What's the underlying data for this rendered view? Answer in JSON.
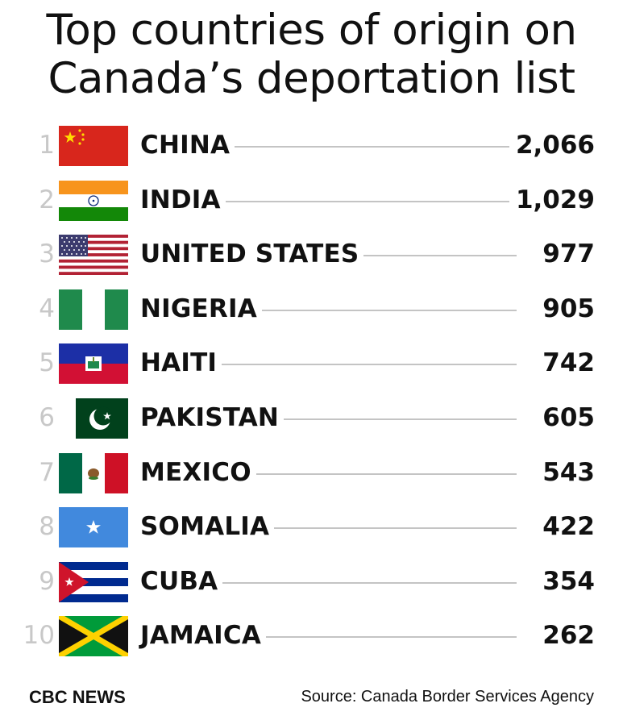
{
  "title_line1": "Top countries of origin on",
  "title_line2": "Canada’s deportation list",
  "footer": {
    "brand": "CBC NEWS",
    "source": "Source: Canada Border Services Agency"
  },
  "colors": {
    "text": "#111111",
    "rank": "#c8c8c8",
    "leader_line": "#c4c4c4"
  },
  "chart_data": {
    "type": "table",
    "title": "Top countries of origin on Canada’s deportation list",
    "columns": [
      "rank",
      "flag",
      "country",
      "value"
    ],
    "rows": [
      {
        "rank": "1",
        "country": "CHINA",
        "value": "2,066",
        "flag": "flag-china-icon"
      },
      {
        "rank": "2",
        "country": "INDIA",
        "value": "1,029",
        "flag": "flag-india-icon"
      },
      {
        "rank": "3",
        "country": "UNITED STATES",
        "value": "977",
        "flag": "flag-united-states-icon"
      },
      {
        "rank": "4",
        "country": "NIGERIA",
        "value": "905",
        "flag": "flag-nigeria-icon"
      },
      {
        "rank": "5",
        "country": "HAITI",
        "value": "742",
        "flag": "flag-haiti-icon"
      },
      {
        "rank": "6",
        "country": "PAKISTAN",
        "value": "605",
        "flag": "flag-pakistan-icon"
      },
      {
        "rank": "7",
        "country": "MEXICO",
        "value": "543",
        "flag": "flag-mexico-icon"
      },
      {
        "rank": "8",
        "country": "SOMALIA",
        "value": "422",
        "flag": "flag-somalia-icon"
      },
      {
        "rank": "9",
        "country": "CUBA",
        "value": "354",
        "flag": "flag-cuba-icon"
      },
      {
        "rank": "10",
        "country": "JAMAICA",
        "value": "262",
        "flag": "flag-jamaica-icon"
      }
    ]
  }
}
